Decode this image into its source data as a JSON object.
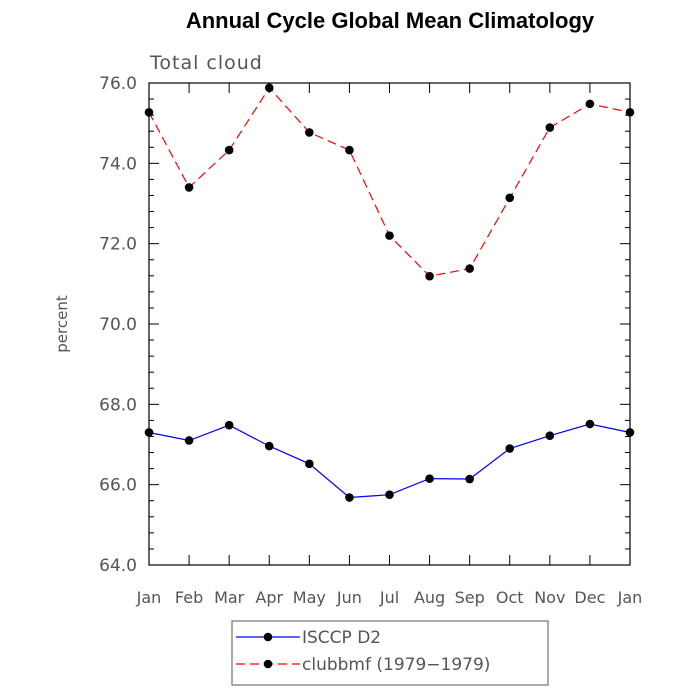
{
  "chart_data": {
    "type": "line",
    "title": "Annual Cycle Global Mean Climatology",
    "subtitle": "Total cloud",
    "xlabel": "",
    "ylabel": "percent",
    "categories": [
      "Jan",
      "Feb",
      "Mar",
      "Apr",
      "May",
      "Jun",
      "Jul",
      "Aug",
      "Sep",
      "Oct",
      "Nov",
      "Dec",
      "Jan"
    ],
    "ylim": [
      64.0,
      76.0
    ],
    "yticks": [
      "64.0",
      "66.0",
      "68.0",
      "70.0",
      "72.0",
      "74.0",
      "76.0"
    ],
    "grid": false,
    "legend_position": "bottom",
    "series": [
      {
        "name": "ISCCP D2",
        "color": "#0000ff",
        "dash": "solid",
        "marker": "filled-circle",
        "values": [
          67.3,
          67.1,
          67.48,
          66.96,
          66.52,
          65.68,
          65.75,
          66.15,
          66.14,
          66.9,
          67.22,
          67.51,
          67.3
        ]
      },
      {
        "name": "clubbmf (1979−1979)",
        "color": "#ff0000",
        "dash": "dashed",
        "marker": "filled-circle",
        "values": [
          75.27,
          73.4,
          74.33,
          75.88,
          74.77,
          74.33,
          72.2,
          71.19,
          71.38,
          73.14,
          74.89,
          75.48,
          75.27
        ]
      }
    ]
  }
}
